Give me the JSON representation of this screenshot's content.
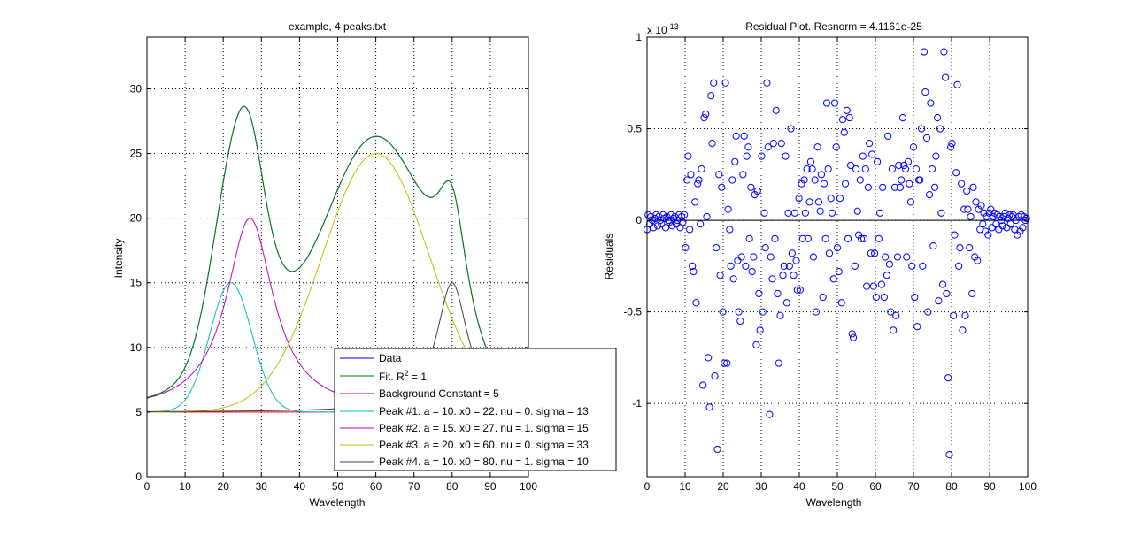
{
  "chart_data": [
    {
      "type": "line",
      "title": "example, 4 peaks.txt",
      "xlabel": "Wavelength",
      "ylabel": "Intensity",
      "xlim": [
        0,
        100
      ],
      "ylim": [
        0,
        34
      ],
      "xticks": [
        0,
        10,
        20,
        30,
        40,
        50,
        60,
        70,
        80,
        90,
        100
      ],
      "yticks": [
        0,
        5,
        10,
        15,
        20,
        25,
        30
      ],
      "grid": true,
      "legend_position": "bottom-right",
      "peaks": [
        {
          "shape": "gaussian",
          "a": 10,
          "x0": 22,
          "nu": 0,
          "sigma": 13
        },
        {
          "shape": "lorentzian",
          "a": 15,
          "x0": 27,
          "nu": 1,
          "sigma": 15
        },
        {
          "shape": "gaussian",
          "a": 20,
          "x0": 60,
          "nu": 0,
          "sigma": 33
        },
        {
          "shape": "lorentzian",
          "a": 10,
          "x0": 80,
          "nu": 1,
          "sigma": 10
        }
      ],
      "background": 5,
      "series": [
        {
          "name": "Data",
          "color": "#0000ff"
        },
        {
          "name": "Fit. R² = 1",
          "color": "#008000"
        },
        {
          "name": "Background Constant = 5",
          "color": "#ff0000"
        },
        {
          "name": "Peak #1. a = 10. x0 = 22. nu = 0. sigma = 13",
          "color": "#00bfbf"
        },
        {
          "name": "Peak #2. a = 15. x0 = 27. nu = 1. sigma = 15",
          "color": "#bf00bf"
        },
        {
          "name": "Peak #3. a = 20. x0 = 60. nu = 0. sigma = 33",
          "color": "#bfbf00"
        },
        {
          "name": "Peak #4. a = 10. x0 = 80. nu = 1. sigma = 10",
          "color": "#404040"
        }
      ],
      "legend": {
        "data": "Data",
        "fit_prefix": "Fit. R",
        "fit_sup": "2",
        "fit_suffix": " = 1",
        "background": "Background Constant = 5",
        "peak1": "Peak #1. a = 10. x0 = 22. nu = 0. sigma = 13",
        "peak2": "Peak #2. a = 15. x0 = 27. nu = 1. sigma = 15",
        "peak3": "Peak #3. a = 20. x0 = 60. nu = 0. sigma = 33",
        "peak4": "Peak #4. a = 10. x0 = 80. nu = 1. sigma = 10"
      }
    },
    {
      "type": "scatter",
      "title": "Residual Plot. Resnorm = 4.1161e-25",
      "xlabel": "Wavelength",
      "ylabel": "Residuals",
      "scale_note": "x 10",
      "scale_exp": "-13",
      "xlim": [
        0,
        100
      ],
      "ylim": [
        -1.4,
        1.0
      ],
      "xticks": [
        0,
        10,
        20,
        30,
        40,
        50,
        60,
        70,
        80,
        90,
        100
      ],
      "yticks": [
        -1,
        -0.5,
        0,
        0.5,
        1
      ],
      "ytick_labels": [
        "-1",
        "-0.5",
        "0",
        "0.5",
        "1"
      ],
      "grid": true,
      "marker_color": "#0000ff",
      "zero_line": 0,
      "points": [
        [
          0,
          -0.05
        ],
        [
          0.3,
          0.03
        ],
        [
          0.7,
          -0.02
        ],
        [
          1.0,
          0.02
        ],
        [
          1.4,
          0.0
        ],
        [
          1.7,
          -0.04
        ],
        [
          2.1,
          0.01
        ],
        [
          2.4,
          0.03
        ],
        [
          2.8,
          -0.03
        ],
        [
          3.1,
          0.02
        ],
        [
          3.5,
          0.0
        ],
        [
          3.8,
          -0.02
        ],
        [
          4.2,
          0.03
        ],
        [
          4.5,
          0.01
        ],
        [
          4.9,
          -0.04
        ],
        [
          5.2,
          0.02
        ],
        [
          5.6,
          0.0
        ],
        [
          5.9,
          -0.01
        ],
        [
          6.3,
          0.03
        ],
        [
          6.6,
          -0.03
        ],
        [
          7.0,
          0.01
        ],
        [
          7.3,
          0.02
        ],
        [
          7.7,
          -0.02
        ],
        [
          8.0,
          0.0
        ],
        [
          8.4,
          0.03
        ],
        [
          8.7,
          -0.04
        ],
        [
          9.1,
          0.02
        ],
        [
          9.4,
          -0.01
        ],
        [
          9.8,
          0.03
        ],
        [
          10.1,
          -0.15
        ],
        [
          10.5,
          0.22
        ],
        [
          10.8,
          0.35
        ],
        [
          11.2,
          -0.05
        ],
        [
          11.5,
          0.25
        ],
        [
          11.9,
          -0.25
        ],
        [
          12.2,
          -0.28
        ],
        [
          12.6,
          0.1
        ],
        [
          12.9,
          -0.45
        ],
        [
          13.3,
          0.2
        ],
        [
          13.6,
          0.22
        ],
        [
          14.0,
          -0.02
        ],
        [
          14.3,
          0.28
        ],
        [
          14.7,
          -0.9
        ],
        [
          15.0,
          0.56
        ],
        [
          15.4,
          0.58
        ],
        [
          15.7,
          0.02
        ],
        [
          16.1,
          -0.75
        ],
        [
          16.4,
          -1.02
        ],
        [
          16.8,
          0.68
        ],
        [
          17.1,
          0.42
        ],
        [
          17.5,
          0.75
        ],
        [
          17.8,
          -0.85
        ],
        [
          18.2,
          -0.15
        ],
        [
          18.5,
          -1.25
        ],
        [
          18.9,
          0.25
        ],
        [
          19.2,
          -0.3
        ],
        [
          19.6,
          0.18
        ],
        [
          19.9,
          -0.5
        ],
        [
          20.3,
          -0.78
        ],
        [
          20.6,
          0.75
        ],
        [
          21.0,
          -0.78
        ],
        [
          21.3,
          0.06
        ],
        [
          21.7,
          -0.05
        ],
        [
          22.0,
          -0.25
        ],
        [
          22.4,
          0.22
        ],
        [
          22.7,
          -0.32
        ],
        [
          23.1,
          0.32
        ],
        [
          23.4,
          0.46
        ],
        [
          23.8,
          -0.22
        ],
        [
          24.1,
          -0.5
        ],
        [
          24.5,
          -0.55
        ],
        [
          24.8,
          -0.2
        ],
        [
          25.2,
          0.25
        ],
        [
          25.5,
          0.46
        ],
        [
          25.9,
          -0.25
        ],
        [
          26.2,
          0.35
        ],
        [
          26.6,
          0.4
        ],
        [
          26.9,
          -0.1
        ],
        [
          27.3,
          0.18
        ],
        [
          27.6,
          -0.28
        ],
        [
          28.0,
          -0.2
        ],
        [
          28.3,
          0.14
        ],
        [
          28.7,
          -0.68
        ],
        [
          29.0,
          0.16
        ],
        [
          29.4,
          -0.4
        ],
        [
          29.7,
          -0.6
        ],
        [
          30.1,
          0.35
        ],
        [
          30.4,
          -0.5
        ],
        [
          30.8,
          0.04
        ],
        [
          31.1,
          -0.15
        ],
        [
          31.5,
          0.75
        ],
        [
          31.8,
          0.4
        ],
        [
          32.2,
          -1.06
        ],
        [
          32.5,
          -0.2
        ],
        [
          32.9,
          -0.32
        ],
        [
          33.2,
          0.42
        ],
        [
          33.6,
          -0.1
        ],
        [
          33.9,
          0.6
        ],
        [
          34.3,
          -0.4
        ],
        [
          34.6,
          -0.78
        ],
        [
          35.0,
          -0.52
        ],
        [
          35.3,
          0.42
        ],
        [
          35.7,
          -0.3
        ],
        [
          36.0,
          -0.25
        ],
        [
          36.4,
          0.35
        ],
        [
          36.7,
          -0.45
        ],
        [
          37.1,
          0.04
        ],
        [
          37.4,
          -0.25
        ],
        [
          37.8,
          0.5
        ],
        [
          38.1,
          -0.18
        ],
        [
          38.5,
          -0.3
        ],
        [
          38.8,
          0.04
        ],
        [
          39.2,
          -0.22
        ],
        [
          39.5,
          -0.38
        ],
        [
          39.9,
          0.12
        ],
        [
          40.2,
          -0.38
        ],
        [
          40.6,
          0.2
        ],
        [
          40.9,
          -0.1
        ],
        [
          41.3,
          0.22
        ],
        [
          41.6,
          0.04
        ],
        [
          42.0,
          0.28
        ],
        [
          42.3,
          -0.1
        ],
        [
          42.7,
          0.1
        ],
        [
          43.0,
          0.32
        ],
        [
          43.4,
          0.28
        ],
        [
          43.7,
          -0.2
        ],
        [
          44.1,
          0.22
        ],
        [
          44.4,
          -0.5
        ],
        [
          44.8,
          0.4
        ],
        [
          45.1,
          0.1
        ],
        [
          45.5,
          0.05
        ],
        [
          45.8,
          0.25
        ],
        [
          46.2,
          -0.42
        ],
        [
          46.5,
          0.2
        ],
        [
          46.9,
          -0.1
        ],
        [
          47.2,
          0.64
        ],
        [
          47.6,
          0.28
        ],
        [
          47.9,
          -0.18
        ],
        [
          48.3,
          0.12
        ],
        [
          48.6,
          0.04
        ],
        [
          49.0,
          -0.32
        ],
        [
          49.3,
          0.64
        ],
        [
          49.7,
          0.4
        ],
        [
          50.0,
          -0.15
        ],
        [
          50.4,
          -0.28
        ],
        [
          50.7,
          0.12
        ],
        [
          51.1,
          -0.45
        ],
        [
          51.4,
          0.55
        ],
        [
          51.8,
          0.48
        ],
        [
          52.1,
          0.2
        ],
        [
          52.5,
          0.6
        ],
        [
          52.8,
          -0.1
        ],
        [
          53.2,
          0.56
        ],
        [
          53.5,
          0.3
        ],
        [
          53.9,
          -0.62
        ],
        [
          54.2,
          -0.64
        ],
        [
          54.6,
          -0.25
        ],
        [
          54.9,
          0.28
        ],
        [
          55.3,
          0.05
        ],
        [
          55.6,
          -0.08
        ],
        [
          56.0,
          0.22
        ],
        [
          56.3,
          -0.1
        ],
        [
          56.7,
          0.35
        ],
        [
          57.0,
          -0.1
        ],
        [
          57.4,
          0.28
        ],
        [
          57.7,
          -0.36
        ],
        [
          58.1,
          0.18
        ],
        [
          58.4,
          0.42
        ],
        [
          58.8,
          -0.18
        ],
        [
          59.1,
          0.36
        ],
        [
          59.5,
          -0.36
        ],
        [
          59.8,
          -0.18
        ],
        [
          60.2,
          -0.42
        ],
        [
          60.5,
          0.32
        ],
        [
          60.9,
          -0.1
        ],
        [
          61.2,
          0.04
        ],
        [
          61.6,
          -0.35
        ],
        [
          61.9,
          0.18
        ],
        [
          62.3,
          -0.42
        ],
        [
          62.6,
          -0.2
        ],
        [
          63.0,
          -0.3
        ],
        [
          63.3,
          0.46
        ],
        [
          63.7,
          -0.24
        ],
        [
          64.0,
          -0.5
        ],
        [
          64.4,
          0.28
        ],
        [
          64.7,
          -0.6
        ],
        [
          65.1,
          0.18
        ],
        [
          65.4,
          -0.52
        ],
        [
          65.8,
          -0.2
        ],
        [
          66.1,
          0.3
        ],
        [
          66.5,
          0.18
        ],
        [
          66.8,
          0.22
        ],
        [
          67.2,
          0.56
        ],
        [
          67.5,
          0.3
        ],
        [
          67.9,
          0.28
        ],
        [
          68.2,
          -0.2
        ],
        [
          68.6,
          0.32
        ],
        [
          68.9,
          0.2
        ],
        [
          69.3,
          0.1
        ],
        [
          69.6,
          -0.25
        ],
        [
          70.0,
          0.4
        ],
        [
          70.3,
          -0.42
        ],
        [
          70.7,
          0.28
        ],
        [
          71.0,
          -0.58
        ],
        [
          71.4,
          0.22
        ],
        [
          71.7,
          0.22
        ],
        [
          72.1,
          0.5
        ],
        [
          72.4,
          -0.25
        ],
        [
          72.8,
          0.92
        ],
        [
          73.1,
          0.7
        ],
        [
          73.5,
          0.45
        ],
        [
          73.8,
          -0.5
        ],
        [
          74.2,
          0.14
        ],
        [
          74.5,
          0.64
        ],
        [
          74.9,
          0.28
        ],
        [
          75.2,
          -0.14
        ],
        [
          75.6,
          0.18
        ],
        [
          75.9,
          0.35
        ],
        [
          76.3,
          0.56
        ],
        [
          76.6,
          -0.44
        ],
        [
          77.0,
          0.5
        ],
        [
          77.3,
          0.04
        ],
        [
          77.7,
          -0.35
        ],
        [
          78.0,
          0.92
        ],
        [
          78.4,
          0.78
        ],
        [
          78.7,
          -0.4
        ],
        [
          79.1,
          -0.86
        ],
        [
          79.4,
          -1.28
        ],
        [
          79.8,
          0.4
        ],
        [
          80.1,
          0.42
        ],
        [
          80.5,
          -0.52
        ],
        [
          80.8,
          -0.08
        ],
        [
          81.2,
          0.26
        ],
        [
          81.5,
          0.74
        ],
        [
          81.9,
          -0.25
        ],
        [
          82.2,
          -0.15
        ],
        [
          82.6,
          0.2
        ],
        [
          82.9,
          -0.6
        ],
        [
          83.3,
          0.06
        ],
        [
          83.6,
          -0.52
        ],
        [
          84.0,
          0.16
        ],
        [
          84.3,
          0.06
        ],
        [
          84.7,
          -0.15
        ],
        [
          85.0,
          0.02
        ],
        [
          85.4,
          -0.4
        ],
        [
          85.7,
          0.18
        ],
        [
          86.1,
          -0.2
        ],
        [
          86.4,
          0.1
        ],
        [
          86.8,
          -0.22
        ],
        [
          87.1,
          0.06
        ],
        [
          87.5,
          -0.05
        ],
        [
          87.8,
          0.08
        ],
        [
          88.2,
          -0.02
        ],
        [
          88.5,
          0.04
        ],
        [
          88.9,
          -0.06
        ],
        [
          89.2,
          0.02
        ],
        [
          89.6,
          -0.08
        ],
        [
          89.9,
          0.04
        ],
        [
          90.3,
          0.06
        ],
        [
          90.6,
          -0.04
        ],
        [
          91.0,
          0.02
        ],
        [
          91.3,
          0.04
        ],
        [
          91.7,
          -0.02
        ],
        [
          92.0,
          0.03
        ],
        [
          92.4,
          -0.05
        ],
        [
          92.7,
          0.02
        ],
        [
          93.1,
          0.0
        ],
        [
          93.4,
          -0.03
        ],
        [
          93.8,
          0.02
        ],
        [
          94.1,
          0.04
        ],
        [
          94.5,
          -0.04
        ],
        [
          94.8,
          0.01
        ],
        [
          95.2,
          0.03
        ],
        [
          95.5,
          -0.02
        ],
        [
          95.9,
          0.02
        ],
        [
          96.2,
          0.03
        ],
        [
          96.6,
          -0.05
        ],
        [
          96.9,
          0.0
        ],
        [
          97.3,
          -0.08
        ],
        [
          97.6,
          0.02
        ],
        [
          98.0,
          -0.06
        ],
        [
          98.3,
          0.03
        ],
        [
          98.7,
          -0.04
        ],
        [
          99.0,
          0.02
        ],
        [
          99.4,
          0.0
        ],
        [
          99.7,
          0.01
        ]
      ]
    }
  ]
}
